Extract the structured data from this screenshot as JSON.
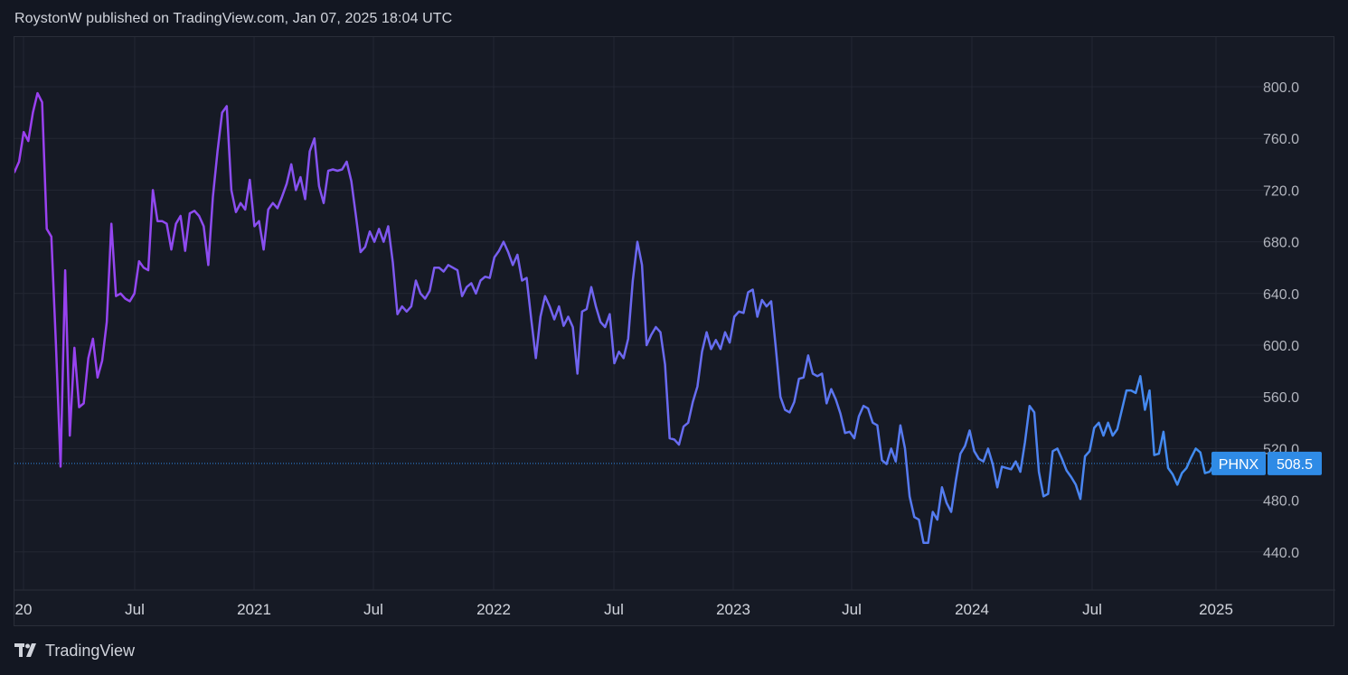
{
  "header": {
    "text": "RoystonW published on TradingView.com, Jan 07, 2025 18:04 UTC"
  },
  "footer": {
    "brand": "TradingView",
    "logo_icon": "tradingview-logo-icon"
  },
  "colors": {
    "background": "#131722",
    "grid": "#232733",
    "line_start": "#9c3ff0",
    "line_end": "#3f8ef0",
    "price_label_bg": "#2f8be6",
    "last_price_line": "#2f8be6"
  },
  "chart_data": {
    "type": "line",
    "symbol": "PHNX",
    "last_price": "508.5",
    "y_ticks": [
      "800.0",
      "760.0",
      "720.0",
      "680.0",
      "640.0",
      "600.0",
      "560.0",
      "520.0",
      "480.0",
      "440.0"
    ],
    "x_ticks": [
      "20",
      "Jul",
      "2021",
      "Jul",
      "2022",
      "Jul",
      "2023",
      "Jul",
      "2024",
      "Jul",
      "2025"
    ],
    "ylim": [
      400,
      840
    ],
    "grid": true,
    "series": [
      {
        "values": [
          734,
          742,
          765,
          758,
          780,
          795,
          788,
          690,
          684,
          600,
          506,
          658,
          530,
          598,
          552,
          555,
          590,
          605,
          575,
          588,
          618,
          694,
          638,
          640,
          636,
          634,
          640,
          665,
          660,
          658,
          720,
          696,
          696,
          694,
          674,
          694,
          700,
          673,
          702,
          704,
          700,
          692,
          662,
          715,
          750,
          780,
          785,
          720,
          703,
          710,
          705,
          728,
          692,
          696,
          674,
          705,
          710,
          706,
          715,
          725,
          740,
          720,
          730,
          713,
          750,
          760,
          723,
          710,
          735,
          736,
          735,
          736,
          742,
          727,
          700,
          672,
          676,
          688,
          680,
          690,
          680,
          692,
          664,
          624,
          630,
          626,
          630,
          650,
          640,
          636,
          642,
          660,
          660,
          657,
          662,
          660,
          658,
          638,
          645,
          648,
          640,
          650,
          653,
          652,
          668,
          673,
          680,
          672,
          662,
          670,
          650,
          652,
          620,
          590,
          622,
          638,
          630,
          620,
          630,
          615,
          622,
          614,
          578,
          626,
          628,
          645,
          630,
          618,
          614,
          624,
          586,
          595,
          590,
          605,
          650,
          680,
          662,
          600,
          608,
          614,
          610,
          585,
          528,
          527,
          523,
          537,
          540,
          556,
          568,
          595,
          610,
          597,
          604,
          597,
          610,
          602,
          622,
          626,
          625,
          641,
          643,
          622,
          635,
          630,
          634,
          598,
          560,
          550,
          548,
          556,
          574,
          575,
          592,
          578,
          576,
          578,
          555,
          566,
          558,
          547,
          532,
          533,
          528,
          545,
          553,
          551,
          540,
          538,
          511,
          508,
          520,
          510,
          538,
          520,
          483,
          467,
          465,
          447,
          447,
          471,
          465,
          490,
          478,
          471,
          495,
          516,
          522,
          534,
          518,
          512,
          510,
          520,
          508,
          490,
          506,
          505,
          504,
          510,
          502,
          525,
          553,
          548,
          502,
          483,
          485,
          518,
          520,
          512,
          503,
          498,
          492,
          481,
          514,
          518,
          536,
          540,
          530,
          540,
          530,
          535,
          550,
          565,
          565,
          563,
          576,
          550,
          565,
          515,
          516,
          533,
          505,
          500,
          492,
          501,
          505,
          513,
          520,
          517,
          501,
          502,
          508
        ]
      }
    ]
  }
}
